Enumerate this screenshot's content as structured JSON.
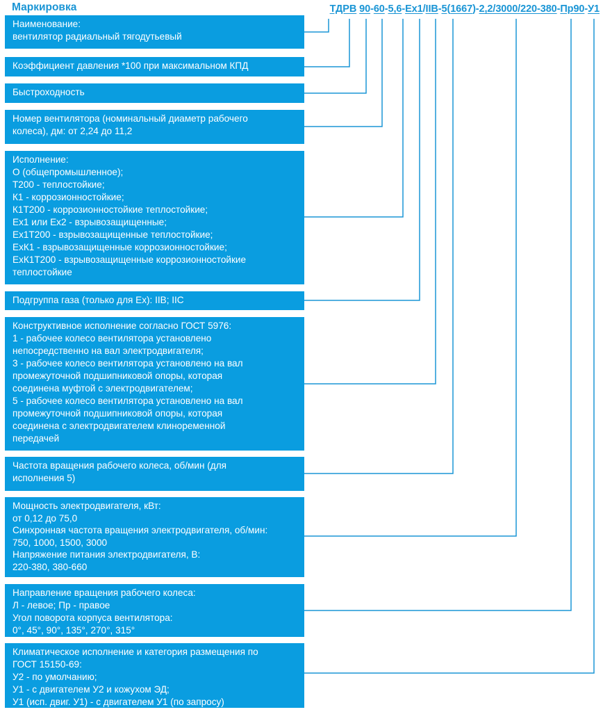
{
  "title": "Маркировка",
  "colors": {
    "box": "#0a9de0",
    "accent": "#1a95d5",
    "connector": "#1a95d5"
  },
  "code_segments": [
    {
      "text": "ТДРВ",
      "underline": true
    },
    {
      "text": " ",
      "underline": false
    },
    {
      "text": "90",
      "underline": true
    },
    {
      "text": "-",
      "underline": false
    },
    {
      "text": "60",
      "underline": true
    },
    {
      "text": "-",
      "underline": false
    },
    {
      "text": "5,6",
      "underline": true
    },
    {
      "text": "-",
      "underline": false
    },
    {
      "text": "Ех1",
      "underline": true
    },
    {
      "text": "/",
      "underline": false
    },
    {
      "text": "IIB",
      "underline": true
    },
    {
      "text": "-",
      "underline": false
    },
    {
      "text": "5",
      "underline": true
    },
    {
      "text": "(",
      "underline": false
    },
    {
      "text": "1667",
      "underline": true
    },
    {
      "text": ")",
      "underline": false
    },
    {
      "text": "-",
      "underline": false
    },
    {
      "text": "2,2/3000/220-380",
      "underline": true
    },
    {
      "text": "-",
      "underline": false
    },
    {
      "text": "Пр90",
      "underline": true
    },
    {
      "text": "-",
      "underline": false
    },
    {
      "text": "У1",
      "underline": true
    }
  ],
  "boxes": [
    {
      "name": "naming",
      "lines": [
        "Наименование:",
        "вентилятор радиальный тягодутьевый"
      ]
    },
    {
      "name": "pressure-coefficient",
      "lines": [
        "Коэффициент давления *100 при максимальном КПД"
      ]
    },
    {
      "name": "speed-coefficient",
      "lines": [
        "Быстроходность"
      ]
    },
    {
      "name": "fan-number",
      "lines": [
        "Номер вентилятора (номинальный диаметр рабочего",
        "колеса), дм: от 2,24 до 11,2"
      ]
    },
    {
      "name": "design-version",
      "lines": [
        "Исполнение:",
        "О (общепромышленное);",
        "Т200 - теплостойкие;",
        "К1 - коррозионностойкие;",
        "К1Т200 - коррозионностойкие теплостойкие;",
        "Ех1 или Ех2 - взрывозащищенные;",
        "Ех1Т200 - взрывозащищенные теплостойкие;",
        "ЕхК1 - взрывозащищенные коррозионностойкие;",
        "ЕхК1Т200 - взрывозащищенные коррозионностойкие",
        "теплостойкие"
      ]
    },
    {
      "name": "gas-subgroup",
      "lines": [
        "Подгруппа газа (только для Ех): IIB; IIC"
      ]
    },
    {
      "name": "construction-version",
      "lines": [
        "Конструктивное исполнение согласно ГОСТ 5976:",
        "1 - рабочее колесо вентилятора установлено",
        "непосредственно на вал электродвигателя;",
        "3 - рабочее колесо вентилятора установлено на вал",
        "промежуточной подшипниковой опоры, которая",
        "соединена муфтой с электродвигателем;",
        "5 - рабочее колесо вентилятора установлено на вал",
        "промежуточной подшипниковой опоры, которая",
        "соединена с электродвигателем клиноременной",
        "передачей"
      ]
    },
    {
      "name": "impeller-speed",
      "lines": [
        "Частота вращения рабочего колеса, об/мин (для",
        "исполнения 5)"
      ]
    },
    {
      "name": "motor",
      "lines": [
        "Мощность электродвигателя, кВт:",
        "от 0,12 до 75,0",
        "Синхронная частота вращения электродвигателя, об/мин:",
        "750, 1000, 1500, 3000",
        "Напряжение питания электродвигателя, В:",
        "220-380, 380-660"
      ]
    },
    {
      "name": "rotation-direction",
      "lines": [
        "Направление вращения рабочего колеса:",
        "Л - левое; Пр - правое",
        "Угол поворота корпуса вентилятора:",
        "0°, 45°, 90°, 135°, 270°, 315°"
      ]
    },
    {
      "name": "climate-version",
      "lines": [
        "Климатическое исполнение и категория размещения по",
        "ГОСТ 15150-69:",
        "У2 - по умолчанию;",
        "У1 - с двигателем У2 и кожухом ЭД;",
        "У1 (исп. двиг. У1) - с двигателем У1 (по запросу)"
      ]
    }
  ]
}
